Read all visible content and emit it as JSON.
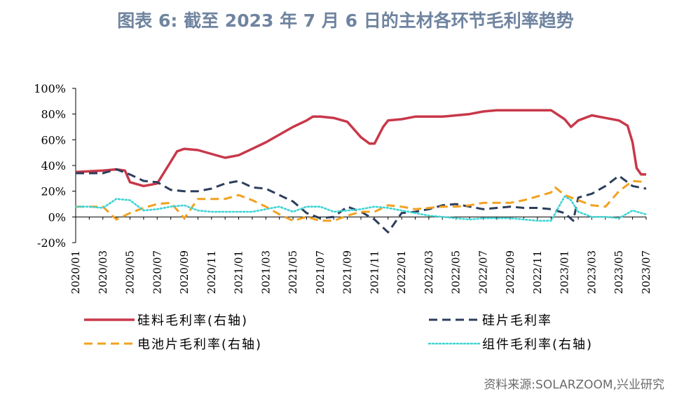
{
  "title": "图表 6:  截至 2023 年 7 月 6 日的主材各环节毛利率趋势",
  "source": "资料来源:SOLARZOOM,兴业研究",
  "colors": {
    "title": "#6f849f",
    "silicon": "#c8384a",
    "wafer": "#2c3e5c",
    "cell": "#f2a11f",
    "module": "#3fd4d4"
  },
  "chart_data": {
    "type": "line",
    "title": "图表 6:  截至 2023 年 7 月 6 日的主材各环节毛利率趋势",
    "xlabel": "",
    "ylabel": "",
    "x_start": "2020-01",
    "x_end": "2023-07",
    "x_tick_labels": [
      "2020/01",
      "2020/03",
      "2020/05",
      "2020/07",
      "2020/09",
      "2020/11",
      "2021/01",
      "2021/03",
      "2021/05",
      "2021/07",
      "2021/09",
      "2021/11",
      "2022/01",
      "2022/03",
      "2022/05",
      "2022/07",
      "2022/09",
      "2022/11",
      "2023/01",
      "2023/03",
      "2023/05",
      "2023/07"
    ],
    "y_tick_labels": [
      "100%",
      "80%",
      "60%",
      "40%",
      "20%",
      "0%",
      "-20%"
    ],
    "ylim": [
      -20,
      100
    ],
    "grid": false,
    "legend_position": "bottom",
    "series": [
      {
        "name": "硅料毛利率(右轴)",
        "key": "silicon",
        "style": "solid",
        "color": "#c8384a",
        "x": [
          "2020-01",
          "2020-03",
          "2020-04",
          "2020-04-20",
          "2020-05",
          "2020-06",
          "2020-07",
          "2020-08",
          "2020-08-15",
          "2020-09",
          "2020-10",
          "2020-11",
          "2020-12",
          "2021-01",
          "2021-02",
          "2021-03",
          "2021-04",
          "2021-05",
          "2021-06",
          "2021-06-15",
          "2021-07",
          "2021-08",
          "2021-09",
          "2021-10",
          "2021-10-20",
          "2021-11",
          "2021-11-20",
          "2021-12",
          "2022-01",
          "2022-02",
          "2022-03",
          "2022-04",
          "2022-05",
          "2022-06",
          "2022-07",
          "2022-08",
          "2022-09",
          "2022-10",
          "2022-11",
          "2022-12",
          "2023-01",
          "2023-01-15",
          "2023-02",
          "2023-03",
          "2023-04",
          "2023-05",
          "2023-05-20",
          "2023-06",
          "2023-06-10",
          "2023-06-20",
          "2023-07"
        ],
        "y": [
          35,
          36,
          37,
          36,
          27,
          24,
          26,
          43,
          51,
          53,
          52,
          49,
          46,
          48,
          53,
          58,
          64,
          70,
          75,
          78,
          78,
          77,
          74,
          62,
          57,
          57,
          70,
          75,
          76,
          78,
          78,
          78,
          79,
          80,
          82,
          83,
          83,
          83,
          83,
          83,
          76,
          70,
          75,
          79,
          77,
          75,
          71,
          58,
          38,
          33,
          33
        ]
      },
      {
        "name": "硅片毛利率",
        "key": "wafer",
        "style": "dashed",
        "color": "#2c3e5c",
        "x": [
          "2020-01",
          "2020-02",
          "2020-03",
          "2020-04",
          "2020-05",
          "2020-06",
          "2020-07",
          "2020-08",
          "2020-09",
          "2020-10",
          "2020-11",
          "2020-12",
          "2021-01",
          "2021-02",
          "2021-03",
          "2021-04",
          "2021-05",
          "2021-06",
          "2021-07",
          "2021-08",
          "2021-09",
          "2021-10",
          "2021-11",
          "2021-12",
          "2022-01",
          "2022-02",
          "2022-03",
          "2022-04",
          "2022-05",
          "2022-06",
          "2022-07",
          "2022-08",
          "2022-09",
          "2022-10",
          "2022-11",
          "2022-12",
          "2023-01",
          "2023-01-20",
          "2023-02",
          "2023-03",
          "2023-04",
          "2023-05",
          "2023-06",
          "2023-07"
        ],
        "y": [
          34,
          34,
          34,
          37,
          33,
          28,
          27,
          21,
          20,
          20,
          22,
          26,
          28,
          23,
          22,
          17,
          12,
          3,
          -1,
          0,
          8,
          4,
          -2,
          -12,
          3,
          4,
          6,
          9,
          10,
          8,
          6,
          7,
          8,
          7,
          7,
          6,
          3,
          -3,
          15,
          18,
          24,
          32,
          24,
          22
        ]
      },
      {
        "name": "电池片毛利率(右轴)",
        "key": "cell",
        "style": "dashed",
        "color": "#f2a11f",
        "x": [
          "2020-01",
          "2020-02",
          "2020-03",
          "2020-04",
          "2020-05",
          "2020-06",
          "2020-07",
          "2020-08",
          "2020-09",
          "2020-10",
          "2020-11",
          "2020-12",
          "2021-01",
          "2021-02",
          "2021-03",
          "2021-04",
          "2021-05",
          "2021-06",
          "2021-07",
          "2021-08",
          "2021-09",
          "2021-10",
          "2021-11",
          "2021-12",
          "2022-01",
          "2022-02",
          "2022-03",
          "2022-04",
          "2022-05",
          "2022-06",
          "2022-07",
          "2022-08",
          "2022-09",
          "2022-10",
          "2022-11",
          "2022-12",
          "2022-12-10",
          "2023-01",
          "2023-02",
          "2023-03",
          "2023-04",
          "2023-05",
          "2023-06",
          "2023-07"
        ],
        "y": [
          8,
          8,
          8,
          -2,
          3,
          7,
          10,
          11,
          -1,
          14,
          14,
          14,
          17,
          13,
          8,
          2,
          -3,
          0,
          -3,
          -3,
          1,
          4,
          4,
          9,
          8,
          6,
          7,
          8,
          8,
          9,
          11,
          11,
          11,
          13,
          16,
          19,
          23,
          17,
          13,
          9,
          8,
          20,
          28,
          27
        ]
      },
      {
        "name": "组件毛利率(右轴)",
        "key": "module",
        "style": "dotted",
        "color": "#3fd4d4",
        "x": [
          "2020-01",
          "2020-02",
          "2020-03",
          "2020-04",
          "2020-05",
          "2020-06",
          "2020-07",
          "2020-08",
          "2020-09",
          "2020-10",
          "2020-11",
          "2020-12",
          "2021-01",
          "2021-02",
          "2021-03",
          "2021-04",
          "2021-05",
          "2021-06",
          "2021-07",
          "2021-08",
          "2021-09",
          "2021-10",
          "2021-11",
          "2021-12",
          "2022-01",
          "2022-02",
          "2022-03",
          "2022-04",
          "2022-05",
          "2022-06",
          "2022-07",
          "2022-08",
          "2022-09",
          "2022-10",
          "2022-11",
          "2022-12",
          "2023-01",
          "2023-01-15",
          "2023-02",
          "2023-03",
          "2023-04",
          "2023-05",
          "2023-06",
          "2023-07"
        ],
        "y": [
          8,
          8,
          7,
          14,
          13,
          5,
          6,
          8,
          9,
          5,
          4,
          4,
          4,
          4,
          6,
          8,
          4,
          8,
          8,
          4,
          5,
          6,
          8,
          7,
          5,
          3,
          1,
          0,
          -1,
          -2,
          -1,
          -1,
          -1,
          -2,
          -3,
          -3,
          16,
          13,
          4,
          0,
          0,
          -1,
          5,
          2
        ]
      }
    ]
  }
}
